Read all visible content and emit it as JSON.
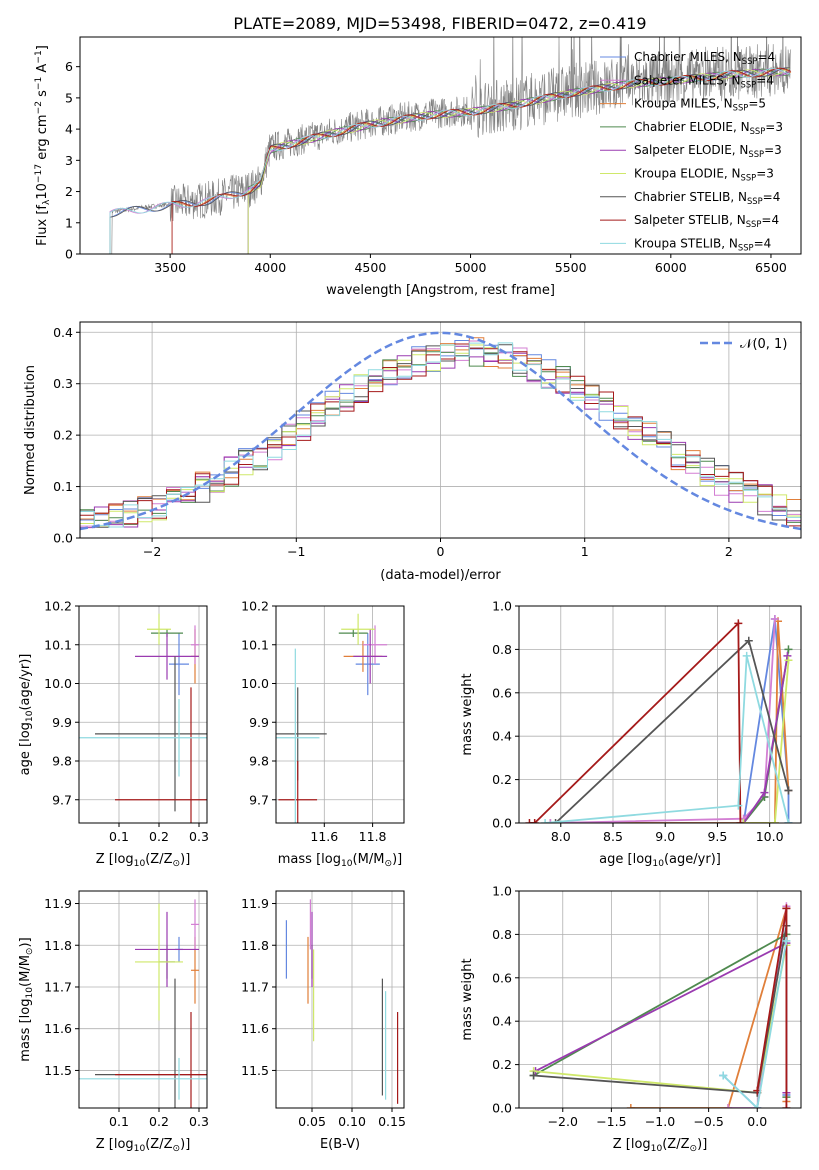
{
  "title": "PLATE=2089, MJD=53498, FIBERID=0472, z=0.419",
  "colors": [
    "#6488e0",
    "#e07f3a",
    "#d37fd3",
    "#4f8a4f",
    "#9a3bb0",
    "#cfe86a",
    "#555555",
    "#a51a1a",
    "#8fdae0"
  ],
  "legend_spectrum": [
    {
      "label": "Chabrier MILES, N",
      "sub": "SSP",
      "suffix": "=4",
      "color": "#6488e0"
    },
    {
      "label": "Salpeter MILES, N",
      "sub": "SSP",
      "suffix": "=4",
      "color": "#d37fd3"
    },
    {
      "label": "Kroupa MILES, N",
      "sub": "SSP",
      "suffix": "=5",
      "color": "#e07f3a"
    },
    {
      "label": "Chabrier ELODIE, N",
      "sub": "SSP",
      "suffix": "=3",
      "color": "#4f8a4f"
    },
    {
      "label": "Salpeter ELODIE, N",
      "sub": "SSP",
      "suffix": "=3",
      "color": "#9a3bb0"
    },
    {
      "label": "Kroupa ELODIE, N",
      "sub": "SSP",
      "suffix": "=3",
      "color": "#cfe86a"
    },
    {
      "label": "Chabrier STELIB, N",
      "sub": "SSP",
      "suffix": "=4",
      "color": "#555555"
    },
    {
      "label": "Salpeter STELIB, N",
      "sub": "SSP",
      "suffix": "=4",
      "color": "#a51a1a"
    },
    {
      "label": "Kroupa STELIB, N",
      "sub": "SSP",
      "suffix": "=4",
      "color": "#8fdae0"
    }
  ],
  "chart_data": [
    {
      "type": "line",
      "panel": "spectrum",
      "xlabel": "wavelength [Angstrom, rest frame]",
      "ylabel_parts": [
        "Flux [f",
        "λ",
        "10",
        "−17",
        " erg cm",
        "−2",
        " s",
        "−1",
        " A",
        "−1",
        "]"
      ],
      "xlim": [
        3050,
        6650
      ],
      "ylim": [
        0,
        6.95
      ],
      "xticks": [
        3500,
        4000,
        4500,
        5000,
        5500,
        6000,
        6500
      ],
      "yticks": [
        0,
        1,
        2,
        3,
        4,
        5,
        6
      ],
      "continuum": {
        "x": [
          3200,
          3500,
          3700,
          3900,
          3950,
          4000,
          4300,
          4500,
          4800,
          5000,
          5200,
          5500,
          5800,
          6000,
          6300,
          6600
        ],
        "y": [
          1.35,
          1.6,
          1.75,
          2.1,
          2.3,
          3.4,
          3.9,
          4.2,
          4.5,
          4.6,
          4.8,
          5.2,
          5.5,
          5.6,
          5.8,
          5.9
        ]
      },
      "model_start_x": [
        3200,
        3510,
        3200,
        3890,
        3890,
        3890,
        3200,
        3510,
        3200
      ]
    },
    {
      "type": "bar",
      "panel": "residuals",
      "xlabel": "(data-model)/error",
      "ylabel": "Normed distribution",
      "xlim": [
        -2.5,
        2.5
      ],
      "ylim": [
        0,
        0.42
      ],
      "xticks": [
        -2,
        -1,
        0,
        1,
        2
      ],
      "xtick_labels": [
        "−2",
        "−1",
        "0",
        "1",
        "2"
      ],
      "yticks": [
        0,
        0.1,
        0.2,
        0.3,
        0.4
      ],
      "ytick_labels": [
        "0.0",
        "0.1",
        "0.2",
        "0.3",
        "0.4"
      ],
      "legend": "𝒩(0, 1)",
      "bin_width": 0.1
    },
    {
      "type": "scatter",
      "panel": "Z-age",
      "xlabel_parts": [
        "Z [log",
        "10",
        "(Z/Z",
        "⊙",
        ")]"
      ],
      "ylabel_parts": [
        "age  [log",
        "10",
        "(age/yr)]"
      ],
      "xlim": [
        0.0,
        0.32
      ],
      "ylim": [
        9.64,
        10.2
      ],
      "xticks": [
        0.1,
        0.2,
        0.3
      ],
      "xtick_labels": [
        "0.1",
        "0.2",
        "0.3"
      ],
      "yticks": [
        9.7,
        9.8,
        9.9,
        10.0,
        10.1,
        10.2
      ],
      "ytick_labels": [
        "9.7",
        "9.8",
        "9.9",
        "10.0",
        "10.1",
        "10.2"
      ],
      "points": [
        {
          "x": 0.25,
          "y": 10.05,
          "xe": 0.025,
          "ye": 0.08
        },
        {
          "x": 0.29,
          "y": 10.07,
          "xe": 0.01,
          "ye": 0.07
        },
        {
          "x": 0.29,
          "y": 10.1,
          "xe": 0.01,
          "ye": 0.05
        },
        {
          "x": 0.22,
          "y": 10.13,
          "xe": 0.04,
          "ye": 0.01
        },
        {
          "x": 0.22,
          "y": 10.07,
          "xe": 0.08,
          "ye": 0.06
        },
        {
          "x": 0.2,
          "y": 10.14,
          "xe": 0.03,
          "ye": 0.04
        },
        {
          "x": 0.24,
          "y": 9.87,
          "xe": 0.2,
          "ye": 0.2
        },
        {
          "x": 0.28,
          "y": 9.7,
          "xe": 0.19,
          "ye": 0.29
        },
        {
          "x": 0.25,
          "y": 9.86,
          "xe": 0.25,
          "ye": 0.1
        }
      ]
    },
    {
      "type": "scatter",
      "panel": "mass-age",
      "xlabel_parts": [
        "mass [log",
        "10",
        "(M/M",
        "⊙",
        ")]"
      ],
      "xlim": [
        11.4,
        11.93
      ],
      "ylim": [
        9.64,
        10.2
      ],
      "xticks": [
        11.6,
        11.8
      ],
      "xtick_labels": [
        "11.6",
        "11.8"
      ],
      "yticks": [
        9.7,
        9.8,
        9.9,
        10.0,
        10.1,
        10.2
      ],
      "ytick_labels": [
        "9.7",
        "9.8",
        "9.9",
        "10.0",
        "10.1",
        "10.2"
      ],
      "points": [
        {
          "x": 11.78,
          "y": 10.05,
          "xe": 0.05,
          "ye": 0.08
        },
        {
          "x": 11.76,
          "y": 10.07,
          "xe": 0.08,
          "ye": 0.04
        },
        {
          "x": 11.81,
          "y": 10.1,
          "xe": 0.05,
          "ye": 0.05
        },
        {
          "x": 11.72,
          "y": 10.13,
          "xe": 0.06,
          "ye": 0.01
        },
        {
          "x": 11.79,
          "y": 10.07,
          "xe": 0.07,
          "ye": 0.07
        },
        {
          "x": 11.74,
          "y": 10.14,
          "xe": 0.07,
          "ye": 0.04
        },
        {
          "x": 11.49,
          "y": 9.87,
          "xe": 0.12,
          "ye": 0.12
        },
        {
          "x": 11.49,
          "y": 9.7,
          "xe": 0.08,
          "ye": 0.1
        },
        {
          "x": 11.48,
          "y": 9.86,
          "xe": 0.1,
          "ye": 0.23
        }
      ]
    },
    {
      "type": "line",
      "panel": "age-weight",
      "xlabel_parts": [
        "age  [log",
        "10",
        "(age/yr)]"
      ],
      "ylabel": "mass weight",
      "xlim": [
        7.6,
        10.3
      ],
      "ylim": [
        0,
        1.0
      ],
      "xticks": [
        8.0,
        8.5,
        9.0,
        9.5,
        10.0
      ],
      "xtick_labels": [
        "8.0",
        "8.5",
        "9.0",
        "9.5",
        "10.0"
      ],
      "yticks": [
        0,
        0.2,
        0.4,
        0.6,
        0.8,
        1.0
      ],
      "ytick_labels": [
        "0.0",
        "0.2",
        "0.4",
        "0.6",
        "0.8",
        "1.0"
      ],
      "series": [
        {
          "x": [
            7.9,
            9.75,
            10.05,
            10.18,
            10.18
          ],
          "y": [
            0.0,
            0.0,
            0.94,
            0.15,
            0.0
          ]
        },
        {
          "x": [
            7.9,
            9.75,
            10.05,
            10.08,
            10.18
          ],
          "y": [
            0.0,
            0.0,
            0.0,
            0.93,
            0.15
          ]
        },
        {
          "x": [
            7.9,
            9.75,
            9.95,
            10.05
          ],
          "y": [
            0.0,
            0.02,
            0.12,
            0.94
          ]
        },
        {
          "x": [
            9.75,
            9.95,
            10.18
          ],
          "y": [
            0.0,
            0.12,
            0.8
          ]
        },
        {
          "x": [
            9.75,
            9.95,
            10.17
          ],
          "y": [
            0.0,
            0.14,
            0.77
          ]
        },
        {
          "x": [
            9.75,
            10.05,
            10.18
          ],
          "y": [
            0.0,
            0.0,
            0.75
          ]
        },
        {
          "x": [
            7.95,
            9.8,
            10.18
          ],
          "y": [
            0.0,
            0.84,
            0.15
          ]
        },
        {
          "x": [
            7.7,
            7.75,
            9.7,
            9.72
          ],
          "y": [
            0.0,
            0.0,
            0.92,
            0.0
          ]
        },
        {
          "x": [
            7.85,
            9.7,
            9.78,
            10.18
          ],
          "y": [
            0.0,
            0.08,
            0.77,
            0.0
          ]
        }
      ]
    },
    {
      "type": "scatter",
      "panel": "Z-mass",
      "xlabel_parts": [
        "Z [log",
        "10",
        "(Z/Z",
        "⊙",
        ")]"
      ],
      "ylabel_parts": [
        "mass [log",
        "10",
        "(M/M",
        "⊙",
        ")]"
      ],
      "xlim": [
        0.0,
        0.32
      ],
      "ylim": [
        11.41,
        11.93
      ],
      "xticks": [
        0.1,
        0.2,
        0.3
      ],
      "xtick_labels": [
        "0.1",
        "0.2",
        "0.3"
      ],
      "yticks": [
        11.5,
        11.6,
        11.7,
        11.8,
        11.9
      ],
      "ytick_labels": [
        "11.5",
        "11.6",
        "11.7",
        "11.8",
        "11.9"
      ],
      "points": [
        {
          "x": 0.25,
          "y": 11.79,
          "xe": 0.01,
          "ye": 0.03
        },
        {
          "x": 0.29,
          "y": 11.74,
          "xe": 0.01,
          "ye": 0.08
        },
        {
          "x": 0.29,
          "y": 11.85,
          "xe": 0.01,
          "ye": 0.06
        },
        {
          "x": 0.22,
          "y": 11.76,
          "xe": 0.02,
          "ye": 0.04
        },
        {
          "x": 0.22,
          "y": 11.79,
          "xe": 0.08,
          "ye": 0.09
        },
        {
          "x": 0.2,
          "y": 11.76,
          "xe": 0.06,
          "ye": 0.14
        },
        {
          "x": 0.24,
          "y": 11.49,
          "xe": 0.2,
          "ye": 0.23
        },
        {
          "x": 0.28,
          "y": 11.49,
          "xe": 0.19,
          "ye": 0.15
        },
        {
          "x": 0.25,
          "y": 11.48,
          "xe": 0.25,
          "ye": 0.05
        }
      ]
    },
    {
      "type": "scatter",
      "panel": "EBV-mass",
      "xlabel": "E(B-V)",
      "xlim": [
        0.005,
        0.165
      ],
      "ylim": [
        11.41,
        11.93
      ],
      "xticks": [
        0.05,
        0.1,
        0.15
      ],
      "xtick_labels": [
        "0.05",
        "0.10",
        "0.15"
      ],
      "yticks": [
        11.5,
        11.6,
        11.7,
        11.8,
        11.9
      ],
      "ytick_labels": [
        "11.5",
        "11.6",
        "11.7",
        "11.8",
        "11.9"
      ],
      "points": [
        {
          "x": 0.018,
          "y": 11.79,
          "xe": 0.0,
          "ye": 0.07
        },
        {
          "x": 0.045,
          "y": 11.74,
          "xe": 0.0,
          "ye": 0.08
        },
        {
          "x": 0.048,
          "y": 11.85,
          "xe": 0.0,
          "ye": 0.06
        },
        {
          "x": 0.05,
          "y": 11.76,
          "xe": 0.0,
          "ye": 0.04
        },
        {
          "x": 0.05,
          "y": 11.79,
          "xe": 0.0,
          "ye": 0.09
        },
        {
          "x": 0.052,
          "y": 11.68,
          "xe": 0.0,
          "ye": 0.11
        },
        {
          "x": 0.138,
          "y": 11.58,
          "xe": 0.0,
          "ye": 0.14
        },
        {
          "x": 0.157,
          "y": 11.53,
          "xe": 0.0,
          "ye": 0.11
        },
        {
          "x": 0.142,
          "y": 11.56,
          "xe": 0.0,
          "ye": 0.13
        }
      ]
    },
    {
      "type": "line",
      "panel": "Z-weight",
      "xlabel_parts": [
        "Z [log",
        "10",
        "(Z/Z",
        "⊙",
        ")]"
      ],
      "ylabel": "mass weight",
      "xlim": [
        -2.45,
        0.45
      ],
      "ylim": [
        0,
        1.0
      ],
      "xticks": [
        -2.0,
        -1.5,
        -1.0,
        -0.5,
        0.0
      ],
      "xtick_labels": [
        "−2.0",
        "−1.5",
        "−1.0",
        "−0.5",
        "0.0"
      ],
      "yticks": [
        0,
        0.2,
        0.4,
        0.6,
        0.8,
        1.0
      ],
      "ytick_labels": [
        "0.0",
        "0.2",
        "0.4",
        "0.6",
        "0.8",
        "1.0"
      ],
      "series": [
        {
          "x": [
            -0.35,
            0.0,
            0.3,
            0.3
          ],
          "y": [
            0.15,
            0.0,
            0.92,
            0.06
          ]
        },
        {
          "x": [
            -1.3,
            -0.3,
            0.3,
            0.3
          ],
          "y": [
            0.0,
            0.0,
            0.92,
            0.03
          ]
        },
        {
          "x": [
            -0.3,
            0.0,
            0.3
          ],
          "y": [
            0.0,
            0.0,
            0.93
          ]
        },
        {
          "x": [
            -2.3,
            0.3,
            0.3
          ],
          "y": [
            0.15,
            0.8,
            0.05
          ]
        },
        {
          "x": [
            -2.28,
            0.3,
            0.3
          ],
          "y": [
            0.17,
            0.76,
            0.07
          ]
        },
        {
          "x": [
            -2.3,
            0.0,
            0.3
          ],
          "y": [
            0.17,
            0.07,
            0.75
          ]
        },
        {
          "x": [
            -2.3,
            0.0,
            0.3
          ],
          "y": [
            0.15,
            0.07,
            0.84
          ]
        },
        {
          "x": [
            0.0,
            0.3,
            0.3
          ],
          "y": [
            0.08,
            0.92,
            0.0
          ]
        },
        {
          "x": [
            -0.35,
            0.0,
            0.3
          ],
          "y": [
            0.15,
            0.0,
            0.77
          ]
        }
      ]
    }
  ]
}
